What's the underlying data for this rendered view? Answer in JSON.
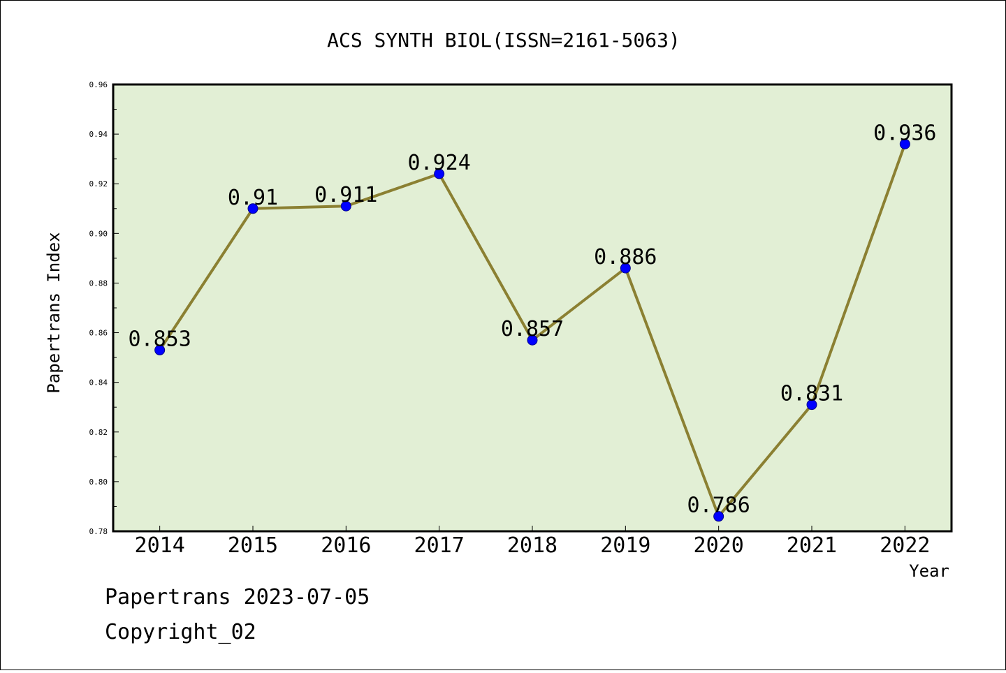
{
  "chart_data": {
    "type": "line",
    "title": "ACS SYNTH BIOL(ISSN=2161-5063)",
    "xlabel": "Year",
    "ylabel": "Papertrans Index",
    "categories": [
      "2014",
      "2015",
      "2016",
      "2017",
      "2018",
      "2019",
      "2020",
      "2021",
      "2022"
    ],
    "series": [
      {
        "values": [
          0.853,
          0.91,
          0.911,
          0.924,
          0.857,
          0.886,
          0.786,
          0.831,
          0.936
        ],
        "labels": [
          "0.853",
          "0.91",
          "0.911",
          "0.924",
          "0.857",
          "0.886",
          "0.786",
          "0.831",
          "0.936"
        ]
      }
    ],
    "ylim": [
      0.78,
      0.96
    ],
    "yticks": [
      "0.78",
      "0.80",
      "0.82",
      "0.84",
      "0.86",
      "0.88",
      "0.90",
      "0.92",
      "0.94",
      "0.96"
    ],
    "grid": false,
    "colors": {
      "plot_background": "#e2efd5",
      "line": "#8b8032",
      "marker": "#0000ff"
    }
  },
  "footer": {
    "line1": "Papertrans 2023-07-05",
    "line2": "Copyright_02"
  }
}
